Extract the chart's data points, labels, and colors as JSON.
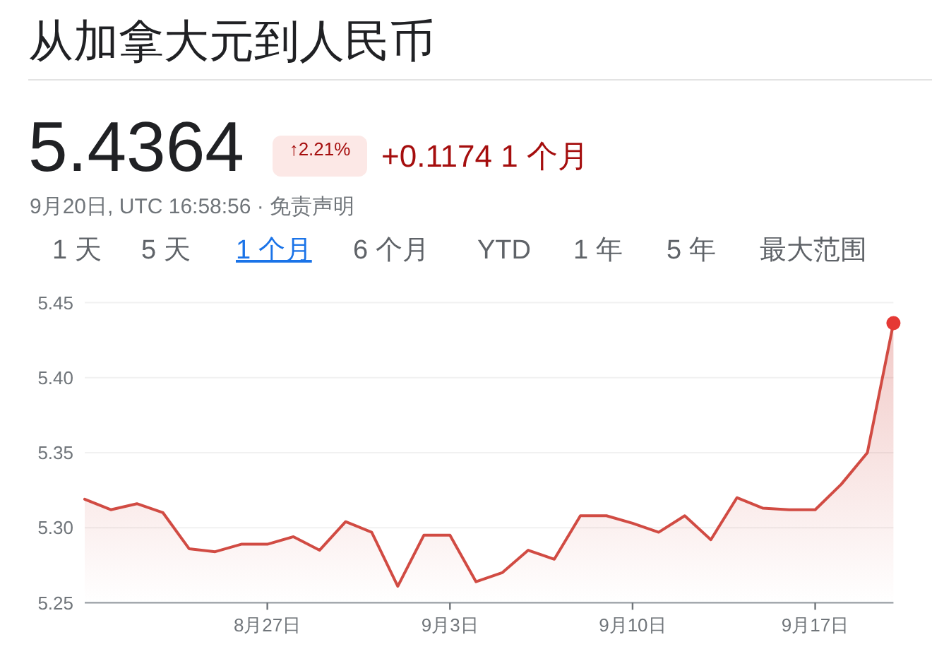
{
  "chart_data": {
    "type": "area",
    "title": "从加拿大元到人民币",
    "subtitle": "9月20日, UTC 16:58:56 · 免责声明",
    "annotations": [
      "5.4364",
      "↑2.21%",
      "+0.1174 1 个月",
      "1 天",
      "5 天",
      "1 个月",
      "6 个月",
      "YTD",
      "1 年",
      "5 年",
      "最大范围"
    ],
    "x": [
      "--08-20",
      "--08-21",
      "--08-22",
      "--08-23",
      "--08-24",
      "--08-25",
      "--08-26",
      "--08-27",
      "--08-28",
      "--08-29",
      "--08-30",
      "--08-31",
      "--09-01",
      "--09-02",
      "--09-03",
      "--09-04",
      "--09-05",
      "--09-06",
      "--09-07",
      "--09-08",
      "--09-09",
      "--09-10",
      "--09-11",
      "--09-12",
      "--09-13",
      "--09-14",
      "--09-15",
      "--09-16",
      "--09-17",
      "--09-18",
      "--09-19",
      "--09-20"
    ],
    "series": [
      {
        "color": "#d14b43",
        "values": [
          5.319,
          5.312,
          5.316,
          5.31,
          5.286,
          5.284,
          5.289,
          5.289,
          5.294,
          5.285,
          5.304,
          5.297,
          5.261,
          5.295,
          5.295,
          5.264,
          5.27,
          5.285,
          5.279,
          5.308,
          5.308,
          5.303,
          5.297,
          5.308,
          5.292,
          5.32,
          5.313,
          5.312,
          5.312,
          5.329,
          5.35,
          5.4364
        ]
      },
      {
        "type": "scatter",
        "color": "#e53935",
        "x": [
          "--09-20"
        ],
        "values": [
          5.4364
        ]
      }
    ],
    "xlim": [
      "--08-20",
      "--09-20"
    ],
    "xticks": [
      {
        "value": "--08-27",
        "label": "8月27日"
      },
      {
        "value": "--09-03",
        "label": "9月3日"
      },
      {
        "value": "--09-10",
        "label": "9月10日"
      },
      {
        "value": "--09-17",
        "label": "9月17日"
      }
    ],
    "ylim": [
      5.25,
      5.45
    ],
    "yticks": [
      5.25,
      {
        "value": 5.3,
        "label": "5.30"
      },
      5.35,
      {
        "value": 5.4,
        "label": "5.40"
      },
      5.45
    ],
    "grid": "y"
  }
}
